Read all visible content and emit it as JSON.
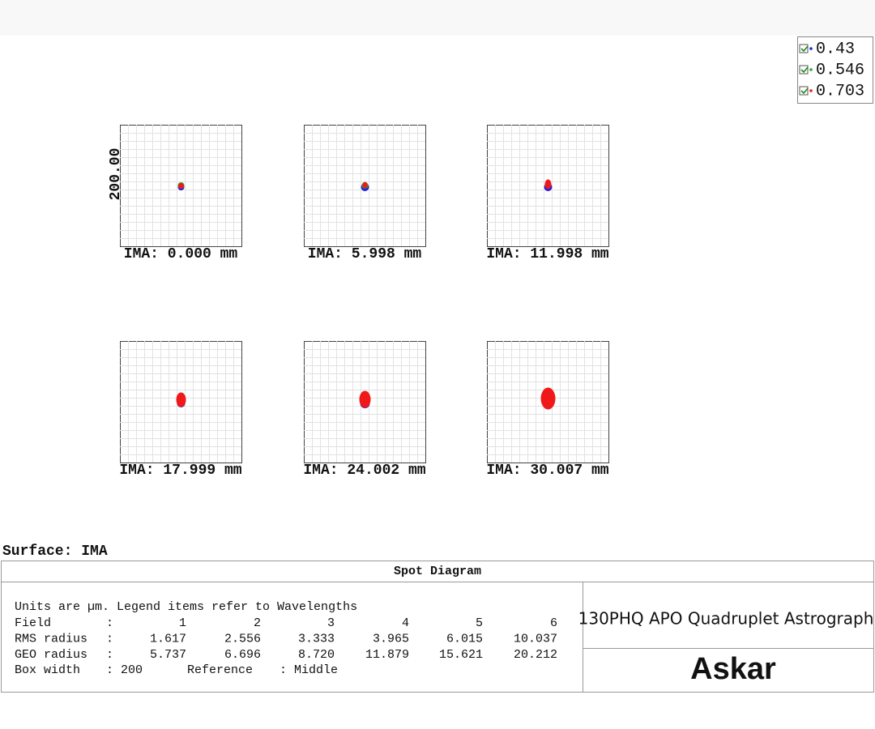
{
  "legend": {
    "items": [
      {
        "label": "0.43",
        "color": "#1f1fe0"
      },
      {
        "label": "0.546",
        "color": "#1bb41b"
      },
      {
        "label": "0.703",
        "color": "#f01818"
      }
    ]
  },
  "scale_label": "200.00",
  "plots": [
    {
      "label": "IMA: 0.000 mm"
    },
    {
      "label": "IMA: 5.998 mm"
    },
    {
      "label": "IMA: 11.998 mm"
    },
    {
      "label": "IMA: 17.999 mm"
    },
    {
      "label": "IMA: 24.002 mm"
    },
    {
      "label": "IMA: 30.007 mm"
    }
  ],
  "surface": "Surface: IMA",
  "table": {
    "title": "Spot Diagram",
    "note": "Units are µm. Legend items refer to Wavelengths",
    "rows": [
      [
        "Field",
        ":",
        "1",
        "2",
        "3",
        "4",
        "5",
        "6"
      ],
      [
        "RMS radius",
        ":",
        "1.617",
        "2.556",
        "3.333",
        "3.965",
        "6.015",
        "10.037"
      ],
      [
        "GEO radius",
        ":",
        "5.737",
        "6.696",
        "8.720",
        "11.879",
        "15.621",
        "20.212"
      ]
    ],
    "footer": [
      "Box width",
      ": 200",
      "Reference",
      ": Middle"
    ],
    "product": "130PHQ APO Quadruplet Astrograph",
    "brand": "Askar"
  }
}
